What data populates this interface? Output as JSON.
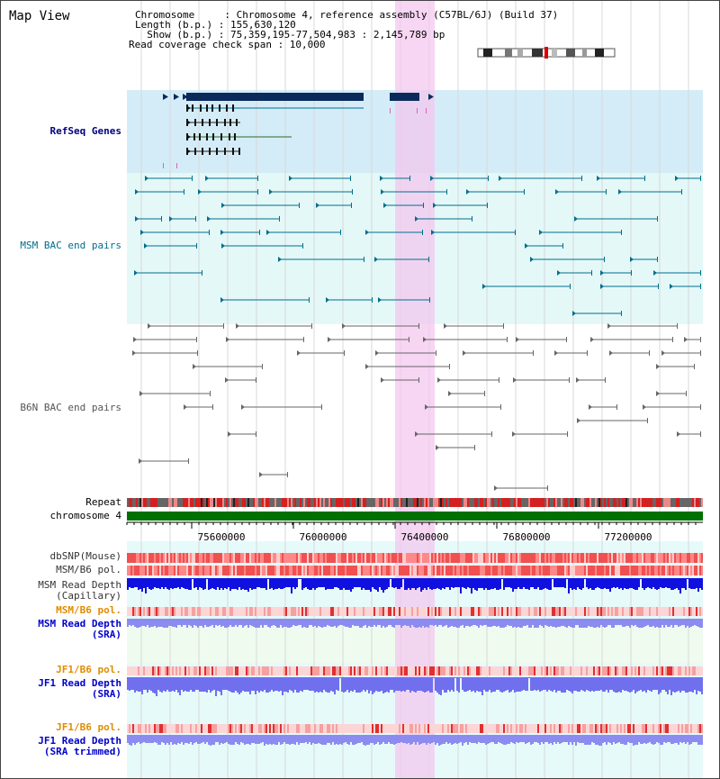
{
  "app": {
    "title": "Map View"
  },
  "header": {
    "chromosome_line": "Chromosome     : Chromosome 4, reference assembly (C57BL/6J) (Build 37)",
    "length_line": "Length (b.p.) : 155,630,120",
    "show_line": "  Show (b.p.) : 75,359,195-77,504,983 : 2,145,789 bp",
    "coverage_line": "Read coverage check span : 10,000"
  },
  "tracks": {
    "refseq": "RefSeq Genes",
    "msm_bac": "MSM BAC end pairs",
    "b6n_bac": "B6N BAC end pairs",
    "repeat": "Repeat",
    "chromosome": "chromosome 4",
    "dbsnp": "dbSNP(Mouse)",
    "msm_pol_1": "MSM/B6 pol.",
    "msm_depth_cap_1": "MSM Read Depth",
    "msm_depth_cap_2": "(Capillary)",
    "msm_pol_2": "MSM/B6 pol.",
    "msm_depth_sra_1": "MSM Read Depth",
    "msm_depth_sra_2": "(SRA)",
    "jf1_pol_1": "JF1/B6 pol.",
    "jf1_depth_sra_1": "JF1 Read Depth",
    "jf1_depth_sra_2": "(SRA)",
    "jf1_pol_2": "JF1/B6 pol.",
    "jf1_depth_trim_1": "JF1 Read Depth",
    "jf1_depth_trim_2": "(SRA trimmed)"
  },
  "axis": {
    "ticks": [
      "75600000",
      "76000000",
      "76400000",
      "76800000",
      "77200000"
    ]
  },
  "colors": {
    "navy": "#000080",
    "teal": "#006e8c",
    "gray": "#555555",
    "orange": "#e08c00",
    "blue_label": "#0000cc",
    "highlight": "#f3c8ef",
    "chromosome": "#007000"
  }
}
